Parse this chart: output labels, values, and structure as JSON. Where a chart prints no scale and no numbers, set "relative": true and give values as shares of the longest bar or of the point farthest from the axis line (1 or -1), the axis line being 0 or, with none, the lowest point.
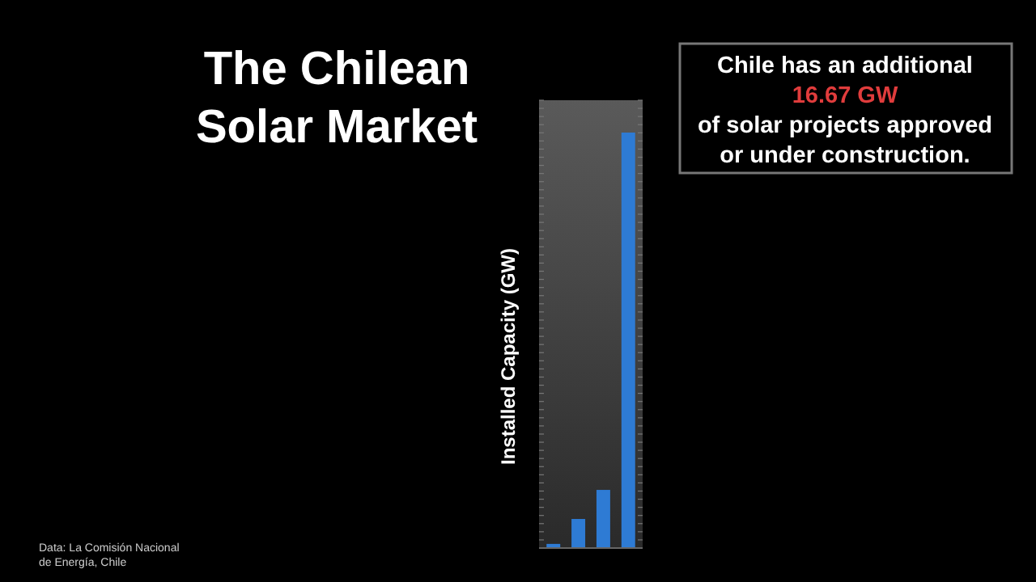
{
  "chart_data": {
    "type": "bar",
    "title": "The Chilean Solar Market",
    "ylabel": "Installed Capacity (GW)",
    "relative": true,
    "categories": [
      null,
      null,
      null,
      null
    ],
    "values": [
      0.01,
      0.07,
      0.14,
      1
    ],
    "color": "#2e7bd4",
    "annotations": [
      "Chile has an additional",
      "16.67 GW",
      "of solar projects approved",
      "or under construction.",
      "Data: La Comisión Nacional de Energía, Chile"
    ]
  }
}
